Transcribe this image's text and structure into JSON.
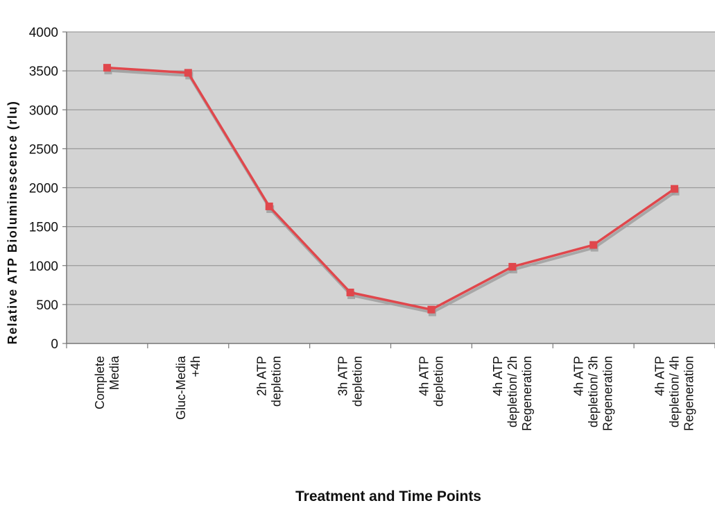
{
  "chart_data": {
    "type": "line",
    "title": "",
    "xlabel": "Treatment and Time Points",
    "ylabel": "Relative ATP Bioluminescence (rlu)",
    "categories": [
      [
        "Complete",
        "Media"
      ],
      [
        "Gluc-Media",
        "+4h"
      ],
      [
        "2h ATP",
        "depletion"
      ],
      [
        "3h ATP",
        "depletion"
      ],
      [
        "4h ATP",
        "depletion"
      ],
      [
        "4h ATP",
        "depletion/ 2h",
        "Regeneration"
      ],
      [
        "4h ATP",
        "depletion/ 3h",
        "Regeneration"
      ],
      [
        "4h ATP",
        "depletion/ 4h",
        "Regeneration"
      ]
    ],
    "series": [
      {
        "values": [
          3540,
          3475,
          1760,
          655,
          435,
          985,
          1265,
          1985
        ]
      }
    ],
    "ylim": [
      0,
      4000
    ],
    "yticks": [
      0,
      500,
      1000,
      1500,
      2000,
      2500,
      3000,
      3500,
      4000
    ],
    "grid": true,
    "legend": "none",
    "colors": {
      "line": "#e0474c",
      "marker": "#e0474c",
      "plot_background": "#d3d3d3",
      "gridline": "#9a9a9a",
      "shadow": "#9c9c9c"
    }
  }
}
